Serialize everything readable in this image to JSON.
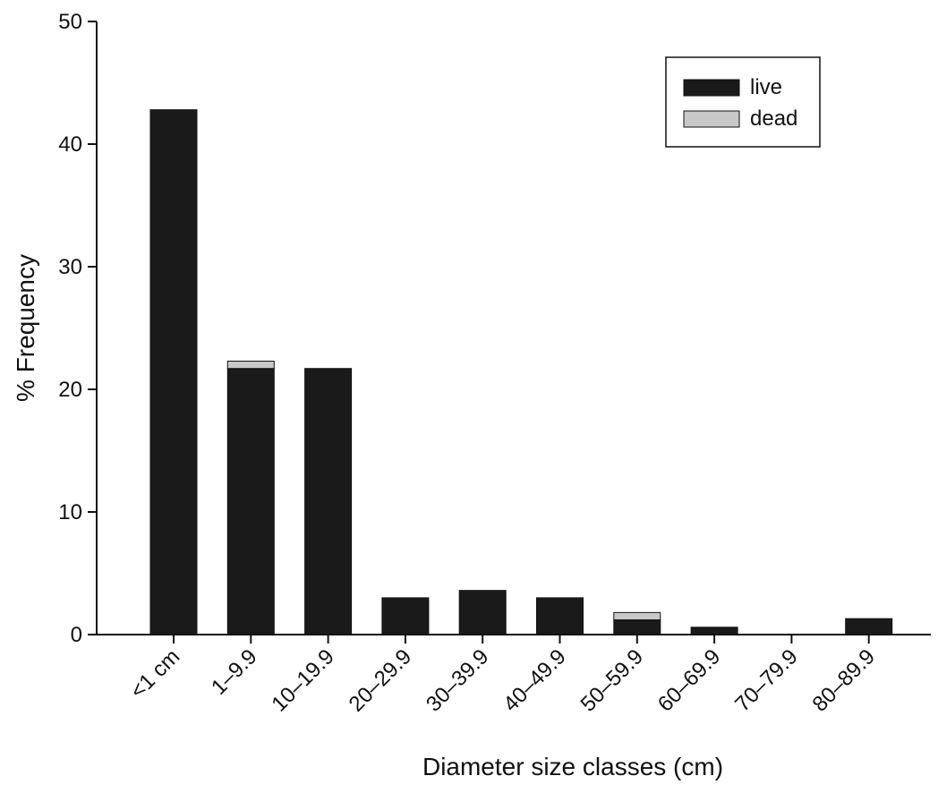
{
  "chart_data": {
    "type": "bar",
    "stacked": true,
    "xlabel": "Diameter size classes (cm)",
    "ylabel": "% Frequency",
    "ylim": [
      0,
      50
    ],
    "yticks": [
      "0",
      "10",
      "20",
      "30",
      "40",
      "50"
    ],
    "categories": [
      "<1 cm",
      "1–9.9",
      "10–19.9",
      "20–29.9",
      "30–39.9",
      "40–49.9",
      "50–59.9",
      "60–69.9",
      "70–79.9",
      "80–89.9"
    ],
    "series": [
      {
        "name": "live",
        "color": "#1a1a1a",
        "values": [
          42.8,
          21.7,
          21.7,
          3.0,
          3.6,
          3.0,
          1.2,
          0.6,
          0,
          1.3
        ]
      },
      {
        "name": "dead",
        "color": "#c8c8c8",
        "values": [
          0,
          0.6,
          0,
          0,
          0,
          0,
          0.6,
          0,
          0,
          0
        ]
      }
    ],
    "legend": {
      "position": "top-right"
    },
    "grid": false
  }
}
